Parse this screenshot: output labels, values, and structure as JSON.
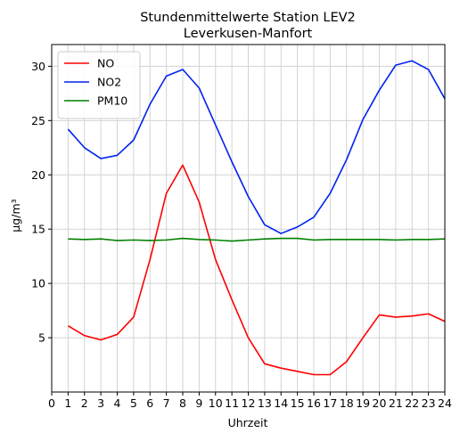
{
  "chart_data": {
    "type": "line",
    "title": "Stundenmittelwerte Station LEV2",
    "subtitle": "Leverkusen-Manfort",
    "xlabel": "Uhrzeit",
    "ylabel": "µg/m³",
    "xlim": [
      0,
      24
    ],
    "ylim": [
      0,
      32
    ],
    "xticks": [
      0,
      1,
      2,
      3,
      4,
      5,
      6,
      7,
      8,
      9,
      10,
      11,
      12,
      13,
      14,
      15,
      16,
      17,
      18,
      19,
      20,
      21,
      22,
      23,
      24
    ],
    "yticks": [
      5,
      10,
      15,
      20,
      25,
      30
    ],
    "grid": true,
    "legend_position": "top-left",
    "x": [
      1,
      2,
      3,
      4,
      5,
      6,
      7,
      8,
      9,
      10,
      11,
      12,
      13,
      14,
      15,
      16,
      17,
      18,
      19,
      20,
      21,
      22,
      23,
      24
    ],
    "series": [
      {
        "name": "NO",
        "color": "#ff0000",
        "values": [
          6.1,
          5.2,
          4.8,
          5.3,
          6.9,
          12.2,
          18.3,
          20.9,
          17.5,
          12.2,
          8.5,
          5.0,
          2.6,
          2.2,
          1.9,
          1.6,
          1.6,
          2.8,
          5.0,
          7.1,
          6.9,
          7.0,
          7.2,
          6.5
        ]
      },
      {
        "name": "NO2",
        "color": "#0022ee",
        "values": [
          24.2,
          22.5,
          21.5,
          21.8,
          23.2,
          26.5,
          29.1,
          29.7,
          28.0,
          24.6,
          21.2,
          18.0,
          15.4,
          14.6,
          15.2,
          16.1,
          18.3,
          21.4,
          25.1,
          27.8,
          30.1,
          30.5,
          29.7,
          27.0
        ]
      },
      {
        "name": "PM10",
        "color": "#008000",
        "values": [
          14.1,
          14.05,
          14.1,
          13.95,
          14.0,
          13.95,
          14.0,
          14.15,
          14.05,
          14.0,
          13.9,
          14.0,
          14.1,
          14.15,
          14.15,
          14.0,
          14.05,
          14.05,
          14.05,
          14.05,
          14.0,
          14.05,
          14.05,
          14.1
        ]
      }
    ]
  }
}
